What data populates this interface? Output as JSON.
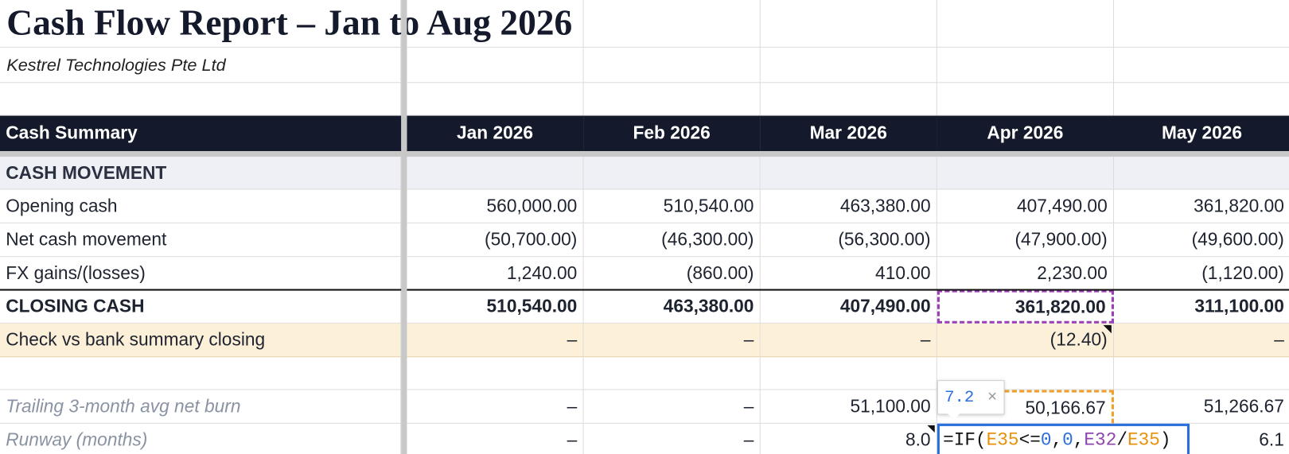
{
  "title": "Cash Flow Report – Jan to Aug 2026",
  "subtitle": "Kestrel Technologies Pte Ltd",
  "table": {
    "header": [
      "Cash Summary",
      "Jan 2026",
      "Feb 2026",
      "Mar 2026",
      "Apr 2026",
      "May 2026"
    ],
    "section": "CASH MOVEMENT",
    "rows": [
      {
        "label": "Opening cash",
        "values": [
          "560,000.00",
          "510,540.00",
          "463,380.00",
          "407,490.00",
          "361,820.00"
        ]
      },
      {
        "label": "Net cash movement",
        "values": [
          "(50,700.00)",
          "(46,300.00)",
          "(56,300.00)",
          "(47,900.00)",
          "(49,600.00)"
        ]
      },
      {
        "label": "FX gains/(losses)",
        "values": [
          "1,240.00",
          "(860.00)",
          "410.00",
          "2,230.00",
          "(1,120.00)"
        ]
      },
      {
        "label": "CLOSING CASH",
        "values": [
          "510,540.00",
          "463,380.00",
          "407,490.00",
          "361,820.00",
          "311,100.00"
        ]
      },
      {
        "label": "Check vs bank summary closing",
        "values": [
          "–",
          "–",
          "–",
          "(12.40)",
          "–"
        ]
      },
      {
        "label": "Trailing 3-month avg net burn",
        "values": [
          "–",
          "–",
          "51,100.00",
          "50,166.67",
          "51,266.67"
        ]
      },
      {
        "label": "Runway (months)",
        "values": [
          "–",
          "–",
          "8.0",
          null,
          "6.1"
        ]
      }
    ]
  },
  "formula_preview": {
    "value": "7.2",
    "close": "×"
  },
  "formula": [
    {
      "text": "=IF(",
      "color": "#111111"
    },
    {
      "text": "E35",
      "color": "#e8900c"
    },
    {
      "text": "<=",
      "color": "#111111"
    },
    {
      "text": "0",
      "color": "#2a6fdb"
    },
    {
      "text": ",",
      "color": "#111111"
    },
    {
      "text": "0",
      "color": "#2a6fdb"
    },
    {
      "text": ",",
      "color": "#111111"
    },
    {
      "text": "E32",
      "color": "#8e44ad"
    },
    {
      "text": "/",
      "color": "#111111"
    },
    {
      "text": "E35",
      "color": "#e8900c"
    },
    {
      "text": ")",
      "color": "#111111"
    }
  ]
}
